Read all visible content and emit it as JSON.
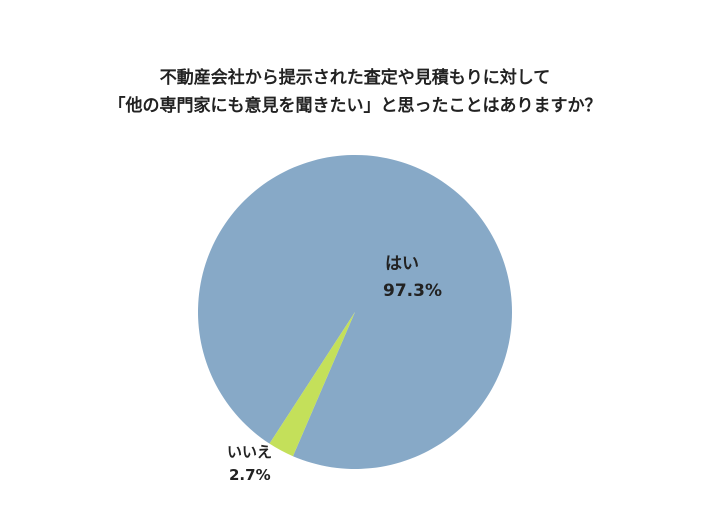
{
  "chart_data": {
    "type": "pie",
    "title_lines": [
      "不動産会社から提示された査定や見積もりに対して",
      "「他の専門家にも意見を聞きたい」と思ったことはありますか？"
    ],
    "categories": [
      "はい",
      "いいえ"
    ],
    "values": [
      97.3,
      2.7
    ],
    "value_labels": [
      "97.3%",
      "2.7%"
    ],
    "colors": [
      "#87a9c7",
      "#c4e05a"
    ],
    "legend": "none",
    "labels_on_chart": true
  }
}
